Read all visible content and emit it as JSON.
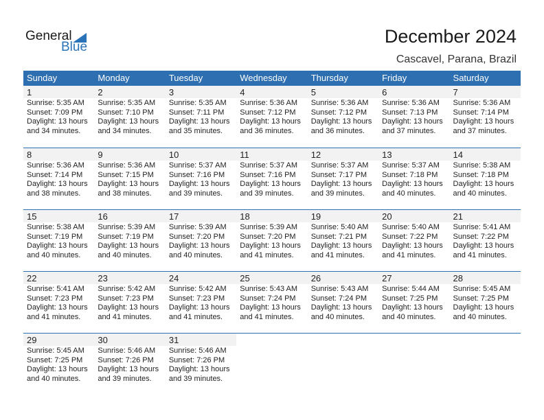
{
  "logo": {
    "text_general": "General",
    "text_blue": "Blue"
  },
  "header": {
    "title": "December 2024",
    "location": "Cascavel, Parana, Brazil"
  },
  "colors": {
    "accent": "#2e6fb1",
    "day_band": "#f2f2f2"
  },
  "weekdays": [
    "Sunday",
    "Monday",
    "Tuesday",
    "Wednesday",
    "Thursday",
    "Friday",
    "Saturday"
  ],
  "weeks": [
    [
      {
        "day": "1",
        "sunrise": "Sunrise: 5:35 AM",
        "sunset": "Sunset: 7:09 PM",
        "daylight1": "Daylight: 13 hours",
        "daylight2": "and 34 minutes."
      },
      {
        "day": "2",
        "sunrise": "Sunrise: 5:35 AM",
        "sunset": "Sunset: 7:10 PM",
        "daylight1": "Daylight: 13 hours",
        "daylight2": "and 34 minutes."
      },
      {
        "day": "3",
        "sunrise": "Sunrise: 5:35 AM",
        "sunset": "Sunset: 7:11 PM",
        "daylight1": "Daylight: 13 hours",
        "daylight2": "and 35 minutes."
      },
      {
        "day": "4",
        "sunrise": "Sunrise: 5:36 AM",
        "sunset": "Sunset: 7:12 PM",
        "daylight1": "Daylight: 13 hours",
        "daylight2": "and 36 minutes."
      },
      {
        "day": "5",
        "sunrise": "Sunrise: 5:36 AM",
        "sunset": "Sunset: 7:12 PM",
        "daylight1": "Daylight: 13 hours",
        "daylight2": "and 36 minutes."
      },
      {
        "day": "6",
        "sunrise": "Sunrise: 5:36 AM",
        "sunset": "Sunset: 7:13 PM",
        "daylight1": "Daylight: 13 hours",
        "daylight2": "and 37 minutes."
      },
      {
        "day": "7",
        "sunrise": "Sunrise: 5:36 AM",
        "sunset": "Sunset: 7:14 PM",
        "daylight1": "Daylight: 13 hours",
        "daylight2": "and 37 minutes."
      }
    ],
    [
      {
        "day": "8",
        "sunrise": "Sunrise: 5:36 AM",
        "sunset": "Sunset: 7:14 PM",
        "daylight1": "Daylight: 13 hours",
        "daylight2": "and 38 minutes."
      },
      {
        "day": "9",
        "sunrise": "Sunrise: 5:36 AM",
        "sunset": "Sunset: 7:15 PM",
        "daylight1": "Daylight: 13 hours",
        "daylight2": "and 38 minutes."
      },
      {
        "day": "10",
        "sunrise": "Sunrise: 5:37 AM",
        "sunset": "Sunset: 7:16 PM",
        "daylight1": "Daylight: 13 hours",
        "daylight2": "and 39 minutes."
      },
      {
        "day": "11",
        "sunrise": "Sunrise: 5:37 AM",
        "sunset": "Sunset: 7:16 PM",
        "daylight1": "Daylight: 13 hours",
        "daylight2": "and 39 minutes."
      },
      {
        "day": "12",
        "sunrise": "Sunrise: 5:37 AM",
        "sunset": "Sunset: 7:17 PM",
        "daylight1": "Daylight: 13 hours",
        "daylight2": "and 39 minutes."
      },
      {
        "day": "13",
        "sunrise": "Sunrise: 5:37 AM",
        "sunset": "Sunset: 7:18 PM",
        "daylight1": "Daylight: 13 hours",
        "daylight2": "and 40 minutes."
      },
      {
        "day": "14",
        "sunrise": "Sunrise: 5:38 AM",
        "sunset": "Sunset: 7:18 PM",
        "daylight1": "Daylight: 13 hours",
        "daylight2": "and 40 minutes."
      }
    ],
    [
      {
        "day": "15",
        "sunrise": "Sunrise: 5:38 AM",
        "sunset": "Sunset: 7:19 PM",
        "daylight1": "Daylight: 13 hours",
        "daylight2": "and 40 minutes."
      },
      {
        "day": "16",
        "sunrise": "Sunrise: 5:39 AM",
        "sunset": "Sunset: 7:19 PM",
        "daylight1": "Daylight: 13 hours",
        "daylight2": "and 40 minutes."
      },
      {
        "day": "17",
        "sunrise": "Sunrise: 5:39 AM",
        "sunset": "Sunset: 7:20 PM",
        "daylight1": "Daylight: 13 hours",
        "daylight2": "and 40 minutes."
      },
      {
        "day": "18",
        "sunrise": "Sunrise: 5:39 AM",
        "sunset": "Sunset: 7:20 PM",
        "daylight1": "Daylight: 13 hours",
        "daylight2": "and 41 minutes."
      },
      {
        "day": "19",
        "sunrise": "Sunrise: 5:40 AM",
        "sunset": "Sunset: 7:21 PM",
        "daylight1": "Daylight: 13 hours",
        "daylight2": "and 41 minutes."
      },
      {
        "day": "20",
        "sunrise": "Sunrise: 5:40 AM",
        "sunset": "Sunset: 7:22 PM",
        "daylight1": "Daylight: 13 hours",
        "daylight2": "and 41 minutes."
      },
      {
        "day": "21",
        "sunrise": "Sunrise: 5:41 AM",
        "sunset": "Sunset: 7:22 PM",
        "daylight1": "Daylight: 13 hours",
        "daylight2": "and 41 minutes."
      }
    ],
    [
      {
        "day": "22",
        "sunrise": "Sunrise: 5:41 AM",
        "sunset": "Sunset: 7:23 PM",
        "daylight1": "Daylight: 13 hours",
        "daylight2": "and 41 minutes."
      },
      {
        "day": "23",
        "sunrise": "Sunrise: 5:42 AM",
        "sunset": "Sunset: 7:23 PM",
        "daylight1": "Daylight: 13 hours",
        "daylight2": "and 41 minutes."
      },
      {
        "day": "24",
        "sunrise": "Sunrise: 5:42 AM",
        "sunset": "Sunset: 7:23 PM",
        "daylight1": "Daylight: 13 hours",
        "daylight2": "and 41 minutes."
      },
      {
        "day": "25",
        "sunrise": "Sunrise: 5:43 AM",
        "sunset": "Sunset: 7:24 PM",
        "daylight1": "Daylight: 13 hours",
        "daylight2": "and 41 minutes."
      },
      {
        "day": "26",
        "sunrise": "Sunrise: 5:43 AM",
        "sunset": "Sunset: 7:24 PM",
        "daylight1": "Daylight: 13 hours",
        "daylight2": "and 40 minutes."
      },
      {
        "day": "27",
        "sunrise": "Sunrise: 5:44 AM",
        "sunset": "Sunset: 7:25 PM",
        "daylight1": "Daylight: 13 hours",
        "daylight2": "and 40 minutes."
      },
      {
        "day": "28",
        "sunrise": "Sunrise: 5:45 AM",
        "sunset": "Sunset: 7:25 PM",
        "daylight1": "Daylight: 13 hours",
        "daylight2": "and 40 minutes."
      }
    ],
    [
      {
        "day": "29",
        "sunrise": "Sunrise: 5:45 AM",
        "sunset": "Sunset: 7:25 PM",
        "daylight1": "Daylight: 13 hours",
        "daylight2": "and 40 minutes."
      },
      {
        "day": "30",
        "sunrise": "Sunrise: 5:46 AM",
        "sunset": "Sunset: 7:26 PM",
        "daylight1": "Daylight: 13 hours",
        "daylight2": "and 39 minutes."
      },
      {
        "day": "31",
        "sunrise": "Sunrise: 5:46 AM",
        "sunset": "Sunset: 7:26 PM",
        "daylight1": "Daylight: 13 hours",
        "daylight2": "and 39 minutes."
      },
      null,
      null,
      null,
      null
    ]
  ]
}
